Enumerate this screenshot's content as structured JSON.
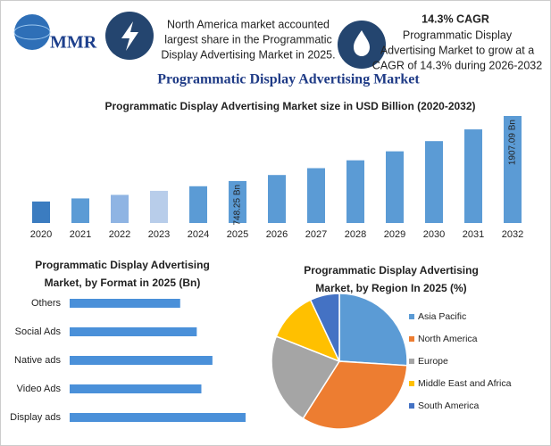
{
  "header": {
    "logo": "MMR",
    "left_note": [
      "North America market accounted",
      "largest share in the Programmatic",
      "Display Advertising Market in 2025."
    ],
    "right_title": "14.3% CAGR",
    "right_note": [
      "Programmatic Display",
      "Advertising Market to grow at a",
      "CAGR of 14.3% during 2026-2032"
    ],
    "title": "Programmatic Display Advertising Market"
  },
  "chart_data": [
    {
      "type": "bar",
      "title": "Programmatic Display Advertising Market size in USD Billion (2020-2032)",
      "categories": [
        "2020",
        "2021",
        "2022",
        "2023",
        "2024",
        "2025",
        "2026",
        "2027",
        "2028",
        "2029",
        "2030",
        "2031",
        "2032"
      ],
      "values": [
        383,
        438,
        501,
        573,
        655,
        748.25,
        855,
        977,
        1117,
        1277,
        1459,
        1668,
        1907.09
      ],
      "value_labels": [
        null,
        null,
        null,
        null,
        null,
        "748.25 Bn",
        null,
        null,
        null,
        null,
        null,
        null,
        "1907.09 Bn"
      ],
      "colors": [
        "#3b7cc0",
        "#5b9bd5",
        "#8fb4e3",
        "#b8cdea",
        "#5b9bd5",
        "#5b9bd5",
        "#5b9bd5",
        "#5b9bd5",
        "#5b9bd5",
        "#5b9bd5",
        "#5b9bd5",
        "#5b9bd5",
        "#5b9bd5"
      ]
    },
    {
      "type": "barh",
      "title": [
        "Programmatic Display Advertising",
        "Market, by Format in 2025 (Bn)"
      ],
      "categories": [
        "Others",
        "Social Ads",
        "Native ads",
        "Video Ads",
        "Display ads"
      ],
      "values": [
        120,
        138,
        155,
        143,
        191
      ],
      "color": "#4a90d9"
    },
    {
      "type": "pie",
      "title": [
        "Programmatic Display Advertising",
        "Market, by Region In 2025 (%)"
      ],
      "categories": [
        "Asia Pacific",
        "North America",
        "Europe",
        "Middle East and Africa",
        "South America"
      ],
      "values": [
        26,
        33,
        22,
        12,
        7
      ],
      "colors": [
        "#5b9bd5",
        "#ed7d31",
        "#a5a5a5",
        "#ffc000",
        "#4472c4"
      ]
    }
  ]
}
